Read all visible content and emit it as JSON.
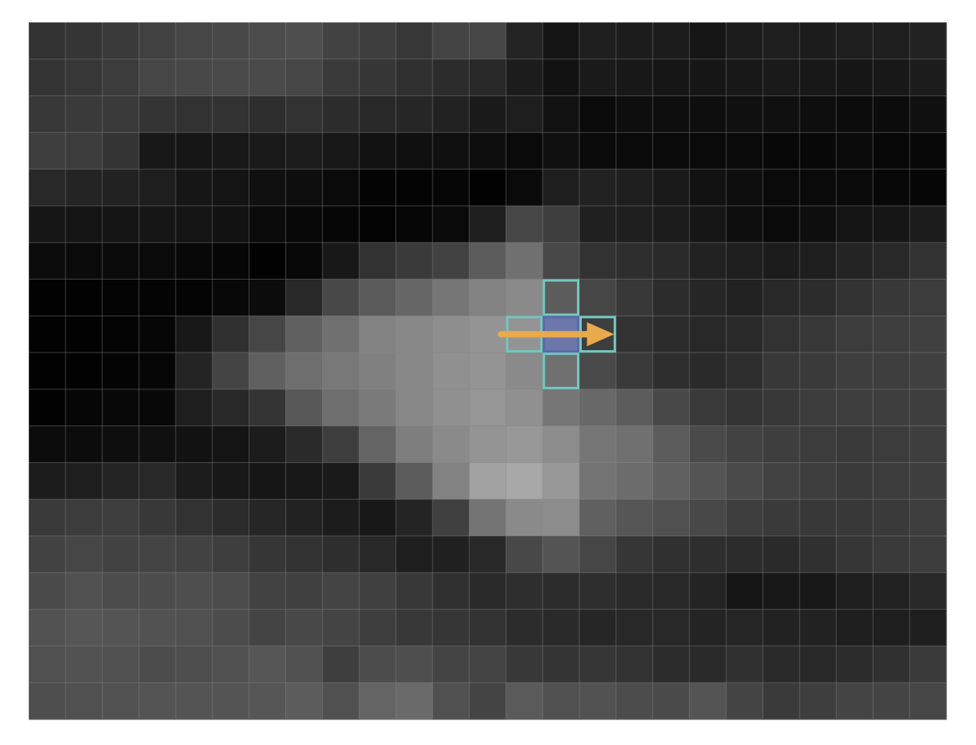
{
  "pixel_grid": {
    "rows": 19,
    "cols": 25,
    "values": [
      [
        50,
        53,
        58,
        65,
        70,
        72,
        76,
        78,
        66,
        62,
        55,
        68,
        70,
        36,
        20,
        30,
        28,
        28,
        22,
        28,
        30,
        28,
        30,
        30,
        34
      ],
      [
        52,
        55,
        60,
        70,
        72,
        74,
        74,
        70,
        58,
        54,
        48,
        44,
        40,
        28,
        18,
        26,
        24,
        22,
        22,
        24,
        26,
        24,
        22,
        24,
        28
      ],
      [
        56,
        58,
        58,
        52,
        50,
        50,
        46,
        50,
        44,
        40,
        38,
        34,
        26,
        30,
        18,
        10,
        14,
        14,
        14,
        16,
        16,
        14,
        12,
        12,
        16
      ],
      [
        62,
        60,
        52,
        24,
        22,
        24,
        26,
        28,
        24,
        18,
        16,
        16,
        14,
        10,
        16,
        10,
        10,
        10,
        10,
        10,
        8,
        8,
        10,
        8,
        8
      ],
      [
        40,
        36,
        34,
        30,
        22,
        20,
        16,
        14,
        10,
        4,
        4,
        6,
        2,
        10,
        30,
        34,
        30,
        26,
        18,
        14,
        10,
        10,
        10,
        8,
        6
      ],
      [
        22,
        20,
        20,
        22,
        20,
        18,
        10,
        8,
        6,
        4,
        6,
        10,
        30,
        70,
        62,
        32,
        30,
        28,
        22,
        14,
        10,
        14,
        20,
        22,
        28
      ],
      [
        12,
        10,
        10,
        10,
        8,
        6,
        2,
        8,
        24,
        50,
        58,
        66,
        92,
        112,
        72,
        50,
        46,
        42,
        34,
        30,
        28,
        30,
        36,
        40,
        50
      ],
      [
        2,
        2,
        4,
        4,
        4,
        8,
        12,
        40,
        72,
        90,
        102,
        118,
        130,
        138,
        92,
        70,
        56,
        44,
        38,
        34,
        40,
        44,
        50,
        56,
        60
      ],
      [
        2,
        2,
        4,
        6,
        24,
        48,
        70,
        96,
        112,
        130,
        136,
        142,
        148,
        148,
        112,
        62,
        50,
        44,
        40,
        42,
        50,
        56,
        60,
        62,
        64
      ],
      [
        2,
        2,
        4,
        6,
        36,
        68,
        96,
        110,
        120,
        128,
        136,
        144,
        148,
        138,
        112,
        74,
        58,
        46,
        42,
        46,
        56,
        58,
        62,
        62,
        64
      ],
      [
        2,
        6,
        8,
        8,
        30,
        40,
        52,
        88,
        110,
        122,
        136,
        144,
        150,
        144,
        118,
        104,
        92,
        72,
        58,
        52,
        56,
        60,
        62,
        62,
        62
      ],
      [
        12,
        12,
        14,
        16,
        18,
        20,
        28,
        42,
        62,
        100,
        126,
        138,
        148,
        152,
        140,
        118,
        112,
        92,
        74,
        66,
        62,
        60,
        58,
        60,
        62
      ],
      [
        28,
        30,
        36,
        40,
        28,
        24,
        22,
        24,
        26,
        58,
        92,
        130,
        162,
        168,
        152,
        116,
        108,
        96,
        84,
        74,
        66,
        62,
        58,
        60,
        62
      ],
      [
        58,
        60,
        62,
        56,
        50,
        44,
        38,
        34,
        28,
        24,
        36,
        64,
        116,
        138,
        140,
        96,
        86,
        80,
        72,
        62,
        58,
        56,
        56,
        58,
        62
      ],
      [
        66,
        70,
        66,
        68,
        66,
        62,
        54,
        50,
        46,
        40,
        30,
        32,
        40,
        72,
        84,
        70,
        54,
        48,
        46,
        44,
        42,
        48,
        54,
        58,
        60
      ],
      [
        74,
        80,
        76,
        76,
        78,
        76,
        66,
        64,
        68,
        64,
        56,
        48,
        42,
        46,
        44,
        46,
        42,
        40,
        36,
        22,
        24,
        24,
        30,
        34,
        40
      ],
      [
        82,
        86,
        84,
        82,
        80,
        76,
        68,
        72,
        68,
        62,
        56,
        54,
        50,
        44,
        42,
        38,
        40,
        40,
        36,
        38,
        34,
        34,
        30,
        30,
        30
      ],
      [
        80,
        82,
        80,
        76,
        78,
        80,
        86,
        80,
        62,
        76,
        78,
        68,
        68,
        56,
        52,
        54,
        50,
        44,
        42,
        48,
        42,
        40,
        44,
        48,
        58
      ],
      [
        78,
        80,
        82,
        84,
        84,
        84,
        86,
        92,
        80,
        100,
        106,
        80,
        68,
        90,
        80,
        82,
        76,
        74,
        84,
        68,
        58,
        62,
        68,
        68,
        70
      ]
    ]
  },
  "highlight": {
    "center_cell": {
      "row": 8,
      "col": 14
    },
    "neighbor_cells": [
      {
        "row": 7,
        "col": 14
      },
      {
        "row": 8,
        "col": 13
      },
      {
        "row": 8,
        "col": 15
      },
      {
        "row": 9,
        "col": 14
      }
    ],
    "neighbor_outline_color": "#72c8c0",
    "center_fill_color": "#6c78b4",
    "center_outline_color": "#5a6aa8"
  },
  "arrow": {
    "from_cell": {
      "row": 8,
      "col": 13
    },
    "to_cell": {
      "row": 8,
      "col": 15
    },
    "color": "#e8aa4c"
  },
  "colors": {
    "grid_line": "#888888",
    "background": "#ffffff"
  }
}
